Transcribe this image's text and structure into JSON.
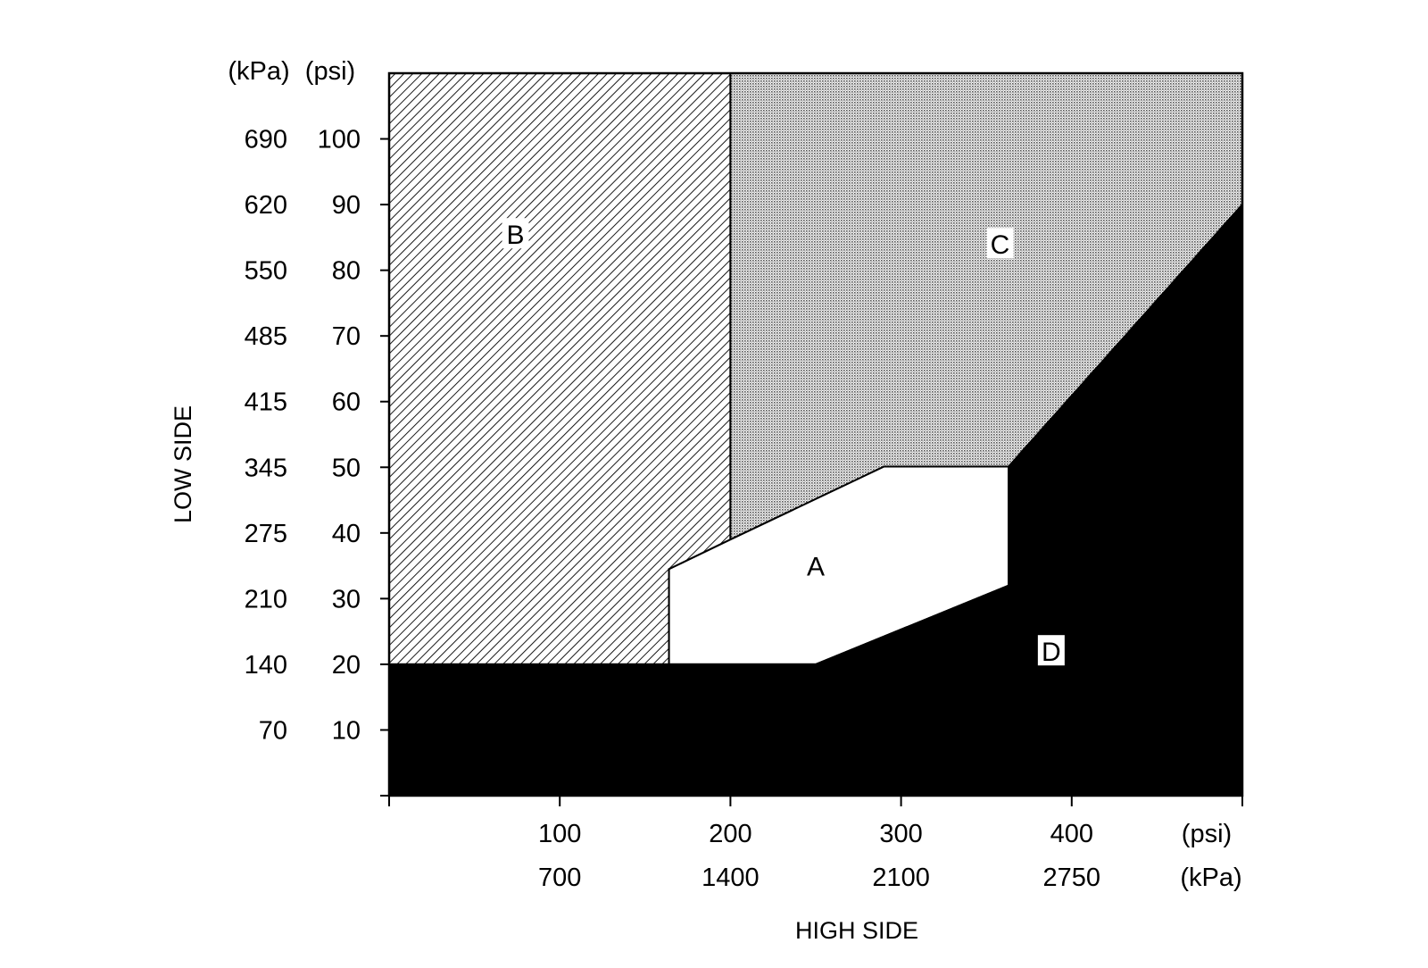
{
  "chart_data": {
    "type": "area",
    "title": "",
    "xlabel": "HIGH SIDE",
    "ylabel": "LOW SIDE",
    "x_unit_psi": "(psi)",
    "x_unit_kpa": "(kPa)",
    "y_unit_psi": "(psi)",
    "y_unit_kpa": "(kPa)",
    "xlim": [
      0,
      500
    ],
    "ylim": [
      0,
      110
    ],
    "x_ticks": [
      {
        "psi": "100",
        "kpa": "700",
        "value": 100
      },
      {
        "psi": "200",
        "kpa": "1400",
        "value": 200
      },
      {
        "psi": "300",
        "kpa": "2100",
        "value": 300
      },
      {
        "psi": "400",
        "kpa": "2750",
        "value": 400
      }
    ],
    "y_ticks": [
      {
        "psi": "100",
        "kpa": "690",
        "value": 100
      },
      {
        "psi": "90",
        "kpa": "620",
        "value": 90
      },
      {
        "psi": "80",
        "kpa": "550",
        "value": 80
      },
      {
        "psi": "70",
        "kpa": "485",
        "value": 70
      },
      {
        "psi": "60",
        "kpa": "415",
        "value": 60
      },
      {
        "psi": "50",
        "kpa": "345",
        "value": 50
      },
      {
        "psi": "40",
        "kpa": "275",
        "value": 40
      },
      {
        "psi": "30",
        "kpa": "210",
        "value": 30
      },
      {
        "psi": "20",
        "kpa": "140",
        "value": 20
      },
      {
        "psi": "10",
        "kpa": "70",
        "value": 10
      }
    ],
    "regions": [
      {
        "label": "B",
        "fill": "hatch",
        "polygon": [
          [
            0,
            110
          ],
          [
            200,
            110
          ],
          [
            200,
            39
          ],
          [
            164,
            34.5
          ],
          [
            164,
            20
          ],
          [
            0,
            20
          ]
        ],
        "label_at": [
          74,
          85.5
        ]
      },
      {
        "label": "C",
        "fill": "dotted-gray",
        "polygon": [
          [
            200,
            110
          ],
          [
            500,
            110
          ],
          [
            500,
            90
          ],
          [
            363,
            50.1
          ],
          [
            290,
            50.1
          ],
          [
            200,
            39
          ]
        ],
        "label_at": [
          358,
          84
        ]
      },
      {
        "label": "A",
        "fill": "white",
        "polygon": [
          [
            164,
            34.5
          ],
          [
            200,
            39
          ],
          [
            290,
            50.1
          ],
          [
            363,
            50.1
          ],
          [
            363,
            32
          ],
          [
            250,
            20
          ],
          [
            164,
            20
          ]
        ],
        "label_at": [
          250,
          35
        ]
      },
      {
        "label": "D",
        "fill": "black",
        "polygon": [
          [
            0,
            20
          ],
          [
            250,
            20
          ],
          [
            363,
            32
          ],
          [
            363,
            50.1
          ],
          [
            500,
            90
          ],
          [
            500,
            0
          ],
          [
            0,
            0
          ]
        ],
        "label_at": [
          388,
          22
        ]
      }
    ],
    "colors": {
      "black": "#000000",
      "white": "#ffffff",
      "dotted_gray": "#b8b8b8",
      "hatch": "#000000"
    }
  }
}
